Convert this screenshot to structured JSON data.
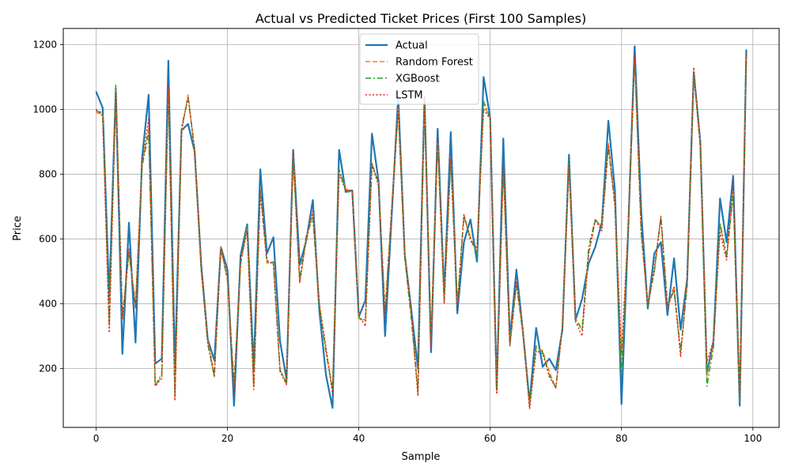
{
  "chart_data": {
    "type": "line",
    "title": "Actual vs Predicted Ticket Prices (First 100 Samples)",
    "xlabel": "Sample",
    "ylabel": "Price",
    "xlim": [
      -5,
      104
    ],
    "ylim": [
      18,
      1250
    ],
    "xticks": [
      0,
      20,
      40,
      60,
      80,
      100
    ],
    "yticks": [
      200,
      400,
      600,
      800,
      1000,
      1200
    ],
    "grid": true,
    "legend_position": "upper-center",
    "series": [
      {
        "name": "Actual",
        "color": "#1f77b4",
        "style": "solid",
        "values": [
          1055,
          1005,
          420,
          1065,
          245,
          650,
          280,
          850,
          1045,
          215,
          230,
          1150,
          200,
          935,
          955,
          870,
          520,
          290,
          225,
          575,
          505,
          85,
          550,
          645,
          205,
          815,
          555,
          605,
          285,
          165,
          875,
          520,
          595,
          720,
          375,
          180,
          78,
          875,
          745,
          750,
          360,
          410,
          925,
          780,
          300,
          670,
          1040,
          550,
          380,
          200,
          1040,
          250,
          940,
          430,
          930,
          370,
          590,
          660,
          530,
          1100,
          975,
          135,
          910,
          290,
          505,
          310,
          95,
          325,
          205,
          230,
          195,
          320,
          860,
          350,
          415,
          525,
          575,
          650,
          965,
          750,
          90,
          620,
          1195,
          685,
          385,
          555,
          590,
          365,
          540,
          320,
          475,
          1115,
          900,
          185,
          285,
          725,
          590,
          795,
          85,
          1185
        ]
      },
      {
        "name": "Random Forest",
        "color": "#ff7f0e",
        "style": "dashed",
        "values": [
          990,
          985,
          330,
          1060,
          355,
          560,
          400,
          830,
          940,
          150,
          175,
          1060,
          110,
          930,
          1045,
          870,
          500,
          285,
          185,
          575,
          470,
          150,
          520,
          635,
          140,
          745,
          525,
          530,
          200,
          150,
          860,
          465,
          600,
          680,
          400,
          255,
          140,
          810,
          755,
          745,
          355,
          345,
          835,
          770,
          380,
          690,
          1000,
          545,
          360,
          125,
          1030,
          285,
          905,
          415,
          850,
          400,
          675,
          605,
          560,
          1015,
          975,
          125,
          820,
          275,
          465,
          310,
          80,
          265,
          255,
          190,
          140,
          330,
          830,
          355,
          320,
          555,
          655,
          640,
          895,
          710,
          210,
          640,
          1155,
          620,
          400,
          500,
          670,
          385,
          455,
          245,
          460,
          1110,
          890,
          175,
          270,
          645,
          540,
          740,
          100,
          1170
        ]
      },
      {
        "name": "XGBoost",
        "color": "#2ca02c",
        "style": "dashdot",
        "values": [
          995,
          990,
          340,
          1075,
          360,
          555,
          390,
          825,
          925,
          145,
          185,
          1065,
          120,
          945,
          1035,
          880,
          505,
          275,
          175,
          570,
          475,
          155,
          525,
          640,
          145,
          755,
          530,
          525,
          195,
          155,
          850,
          475,
          610,
          665,
          390,
          250,
          135,
          815,
          750,
          740,
          355,
          350,
          830,
          775,
          370,
          695,
          995,
          540,
          350,
          130,
          1025,
          290,
          900,
          410,
          845,
          395,
          670,
          600,
          555,
          1025,
          970,
          130,
          825,
          270,
          460,
          305,
          85,
          270,
          250,
          180,
          140,
          330,
          835,
          350,
          320,
          575,
          660,
          635,
          885,
          700,
          175,
          630,
          1160,
          615,
          395,
          500,
          670,
          395,
          440,
          255,
          455,
          1115,
          885,
          145,
          265,
          650,
          550,
          735,
          95,
          1175
        ]
      },
      {
        "name": "LSTM",
        "color": "#d62728",
        "style": "dotted",
        "values": [
          1000,
          980,
          310,
          1050,
          350,
          570,
          385,
          830,
          970,
          145,
          170,
          1075,
          100,
          935,
          1040,
          875,
          520,
          280,
          175,
          570,
          485,
          120,
          540,
          620,
          135,
          750,
          535,
          520,
          190,
          150,
          870,
          465,
          600,
          685,
          395,
          265,
          120,
          800,
          750,
          750,
          365,
          330,
          830,
          765,
          360,
          690,
          1005,
          555,
          370,
          115,
          1040,
          260,
          915,
          400,
          850,
          380,
          675,
          595,
          570,
          1000,
          970,
          120,
          830,
          270,
          470,
          320,
          75,
          255,
          245,
          175,
          140,
          330,
          825,
          345,
          300,
          555,
          660,
          625,
          890,
          705,
          250,
          625,
          1165,
          630,
          390,
          510,
          665,
          385,
          450,
          235,
          475,
          1130,
          880,
          220,
          285,
          620,
          535,
          780,
          110,
          1175
        ]
      }
    ]
  }
}
